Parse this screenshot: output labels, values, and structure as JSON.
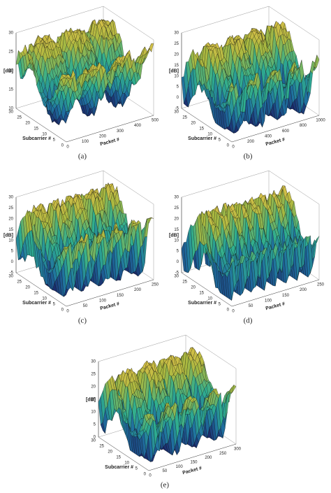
{
  "panels": [
    {
      "caption": "(a)",
      "z_label": "[dB]",
      "x_label": "Packet #",
      "y_label": "Subcarrier #",
      "z_ticks": [
        30,
        25,
        20,
        15,
        10
      ],
      "x_ticks": [
        0,
        100,
        200,
        300,
        400,
        500
      ],
      "y_ticks": [
        30,
        25,
        20,
        15,
        10,
        5,
        0
      ]
    },
    {
      "caption": "(b)",
      "z_label": "[dB]",
      "x_label": "Packet #",
      "y_label": "Subcarrier #",
      "z_ticks": [
        30,
        25,
        20,
        15,
        10,
        5,
        0,
        -5
      ],
      "x_ticks": [
        0,
        200,
        400,
        600,
        800,
        1000
      ],
      "y_ticks": [
        30,
        25,
        20,
        15,
        10,
        5,
        0
      ]
    },
    {
      "caption": "(c)",
      "z_label": "[dB]",
      "x_label": "Packet #",
      "y_label": "Subcarrier #",
      "z_ticks": [
        30,
        25,
        20,
        15,
        10,
        5,
        0,
        -5
      ],
      "x_ticks": [
        0,
        50,
        100,
        150,
        200,
        250
      ],
      "y_ticks": [
        30,
        25,
        20,
        15,
        10,
        5,
        0
      ]
    },
    {
      "caption": "(d)",
      "z_label": "[dB]",
      "x_label": "Packet #",
      "y_label": "Subcarrier #",
      "z_ticks": [
        30,
        25,
        20,
        15,
        10,
        5,
        0,
        -5
      ],
      "x_ticks": [
        0,
        50,
        100,
        150,
        200,
        250
      ],
      "y_ticks": [
        30,
        25,
        20,
        15,
        10,
        5,
        0
      ]
    },
    {
      "caption": "(e)",
      "z_label": "[dB]",
      "x_label": "Packet #",
      "y_label": "Subcarrier #",
      "z_ticks": [
        30,
        25,
        20,
        15,
        10,
        5,
        0
      ],
      "x_ticks": [
        0,
        50,
        100,
        150,
        200,
        250,
        300
      ],
      "y_ticks": [
        30,
        25,
        20,
        15,
        10,
        5,
        0
      ]
    }
  ]
}
